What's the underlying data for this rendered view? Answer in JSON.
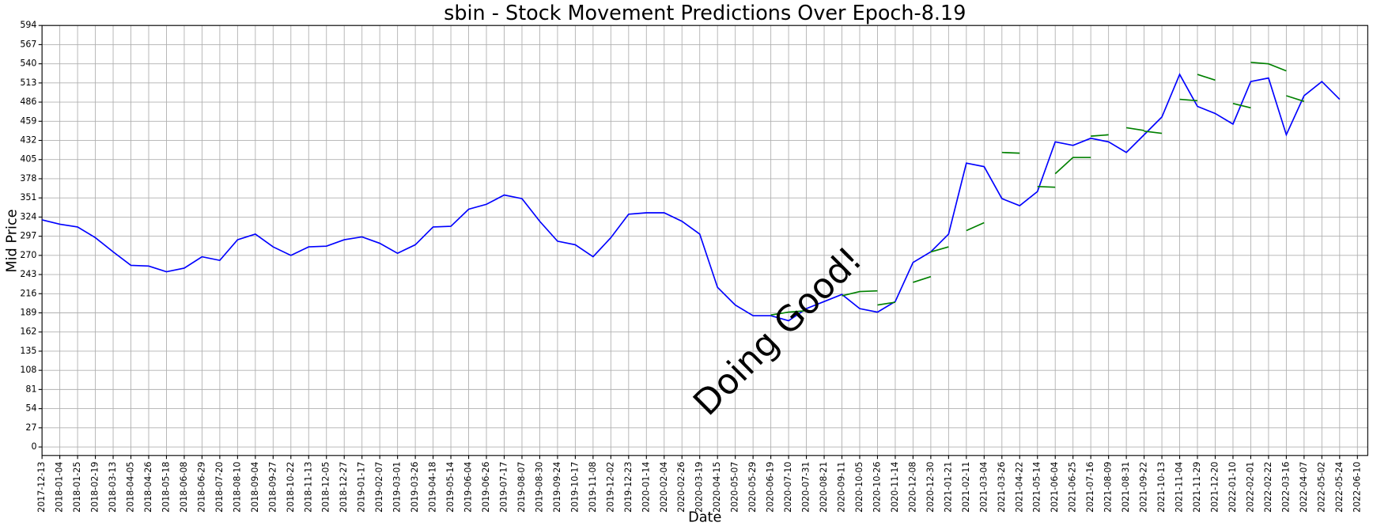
{
  "chart_data": {
    "type": "line",
    "title": "sbin - Stock Movement Predictions Over Epoch-8.19",
    "xlabel": "Date",
    "ylabel": "Mid Price",
    "annotation": "Doing Good!",
    "categories": [
      "2017-12-13",
      "2018-01-04",
      "2018-01-25",
      "2018-02-19",
      "2018-03-13",
      "2018-04-05",
      "2018-04-26",
      "2018-05-18",
      "2018-06-08",
      "2018-06-29",
      "2018-07-20",
      "2018-08-10",
      "2018-09-04",
      "2018-09-27",
      "2018-10-22",
      "2018-11-13",
      "2018-12-05",
      "2018-12-27",
      "2019-01-17",
      "2019-02-07",
      "2019-03-01",
      "2019-03-26",
      "2019-04-18",
      "2019-05-14",
      "2019-06-04",
      "2019-06-26",
      "2019-07-17",
      "2019-08-07",
      "2019-08-30",
      "2019-09-24",
      "2019-10-17",
      "2019-11-08",
      "2019-12-02",
      "2019-12-23",
      "2020-01-14",
      "2020-02-04",
      "2020-02-26",
      "2020-03-19",
      "2020-04-15",
      "2020-05-07",
      "2020-05-29",
      "2020-06-19",
      "2020-07-10",
      "2020-07-31",
      "2020-08-21",
      "2020-09-11",
      "2020-10-05",
      "2020-10-26",
      "2020-11-14",
      "2020-12-08",
      "2020-12-30",
      "2021-01-21",
      "2021-02-11",
      "2021-03-04",
      "2021-03-26",
      "2021-04-22",
      "2021-05-14",
      "2021-06-04",
      "2021-06-25",
      "2021-07-16",
      "2021-08-09",
      "2021-08-31",
      "2021-09-22",
      "2021-10-13",
      "2021-11-04",
      "2021-11-29",
      "2021-12-20",
      "2022-01-10",
      "2022-02-01",
      "2022-02-22",
      "2022-03-16",
      "2022-04-07",
      "2022-05-02",
      "2022-05-24",
      "2022-06-10"
    ],
    "series": [
      {
        "color": "#0000ff",
        "values": [
          320,
          314,
          310,
          295,
          275,
          256,
          255,
          247,
          252,
          268,
          263,
          292,
          300,
          282,
          270,
          282,
          283,
          292,
          296,
          287,
          273,
          285,
          310,
          311,
          335,
          342,
          355,
          350,
          318,
          290,
          285,
          268,
          295,
          328,
          330,
          330,
          318,
          300,
          225,
          200,
          185,
          185,
          178,
          195,
          205,
          215,
          195,
          190,
          205,
          260,
          275,
          300,
          400,
          395,
          350,
          340,
          360,
          430,
          425,
          435,
          430,
          415,
          440,
          465,
          525,
          480,
          470,
          455,
          515,
          520,
          440,
          495,
          515,
          490,
          null
        ]
      },
      {
        "color": "#008000",
        "values": [
          null,
          null,
          null,
          null,
          null,
          null,
          null,
          null,
          null,
          null,
          null,
          null,
          null,
          null,
          null,
          null,
          null,
          null,
          null,
          null,
          null,
          null,
          null,
          null,
          null,
          null,
          null,
          null,
          null,
          null,
          null,
          null,
          null,
          null,
          null,
          null,
          null,
          null,
          null,
          null,
          null,
          186,
          190,
          192,
          null,
          213,
          219,
          220,
          null,
          232,
          240,
          null,
          305,
          316,
          null,
          null,
          367,
          366,
          null,
          438,
          440,
          null,
          445,
          442,
          null,
          525,
          517,
          null,
          542,
          540,
          530,
          null,
          null,
          null,
          null
        ]
      },
      {
        "color": "#008000",
        "values": [
          null,
          null,
          null,
          null,
          null,
          null,
          null,
          null,
          null,
          null,
          null,
          null,
          null,
          null,
          null,
          null,
          null,
          null,
          null,
          null,
          null,
          null,
          null,
          null,
          null,
          null,
          null,
          null,
          null,
          null,
          null,
          null,
          null,
          null,
          null,
          null,
          null,
          null,
          null,
          null,
          null,
          null,
          null,
          null,
          null,
          null,
          null,
          200,
          204,
          null,
          275,
          282,
          null,
          null,
          415,
          414,
          null,
          385,
          408,
          408,
          null,
          450,
          446,
          null,
          490,
          488,
          null,
          484,
          478,
          null,
          495,
          487,
          null,
          null,
          null
        ]
      }
    ],
    "ylim": [
      -12,
      594
    ],
    "yticks": [
      0,
      27,
      54,
      81,
      108,
      135,
      162,
      189,
      216,
      243,
      270,
      297,
      324,
      351,
      378,
      405,
      432,
      459,
      486,
      513,
      540,
      567,
      594
    ],
    "grid": true,
    "title_color": "#00bfbf",
    "annotation_color": "#008000"
  }
}
